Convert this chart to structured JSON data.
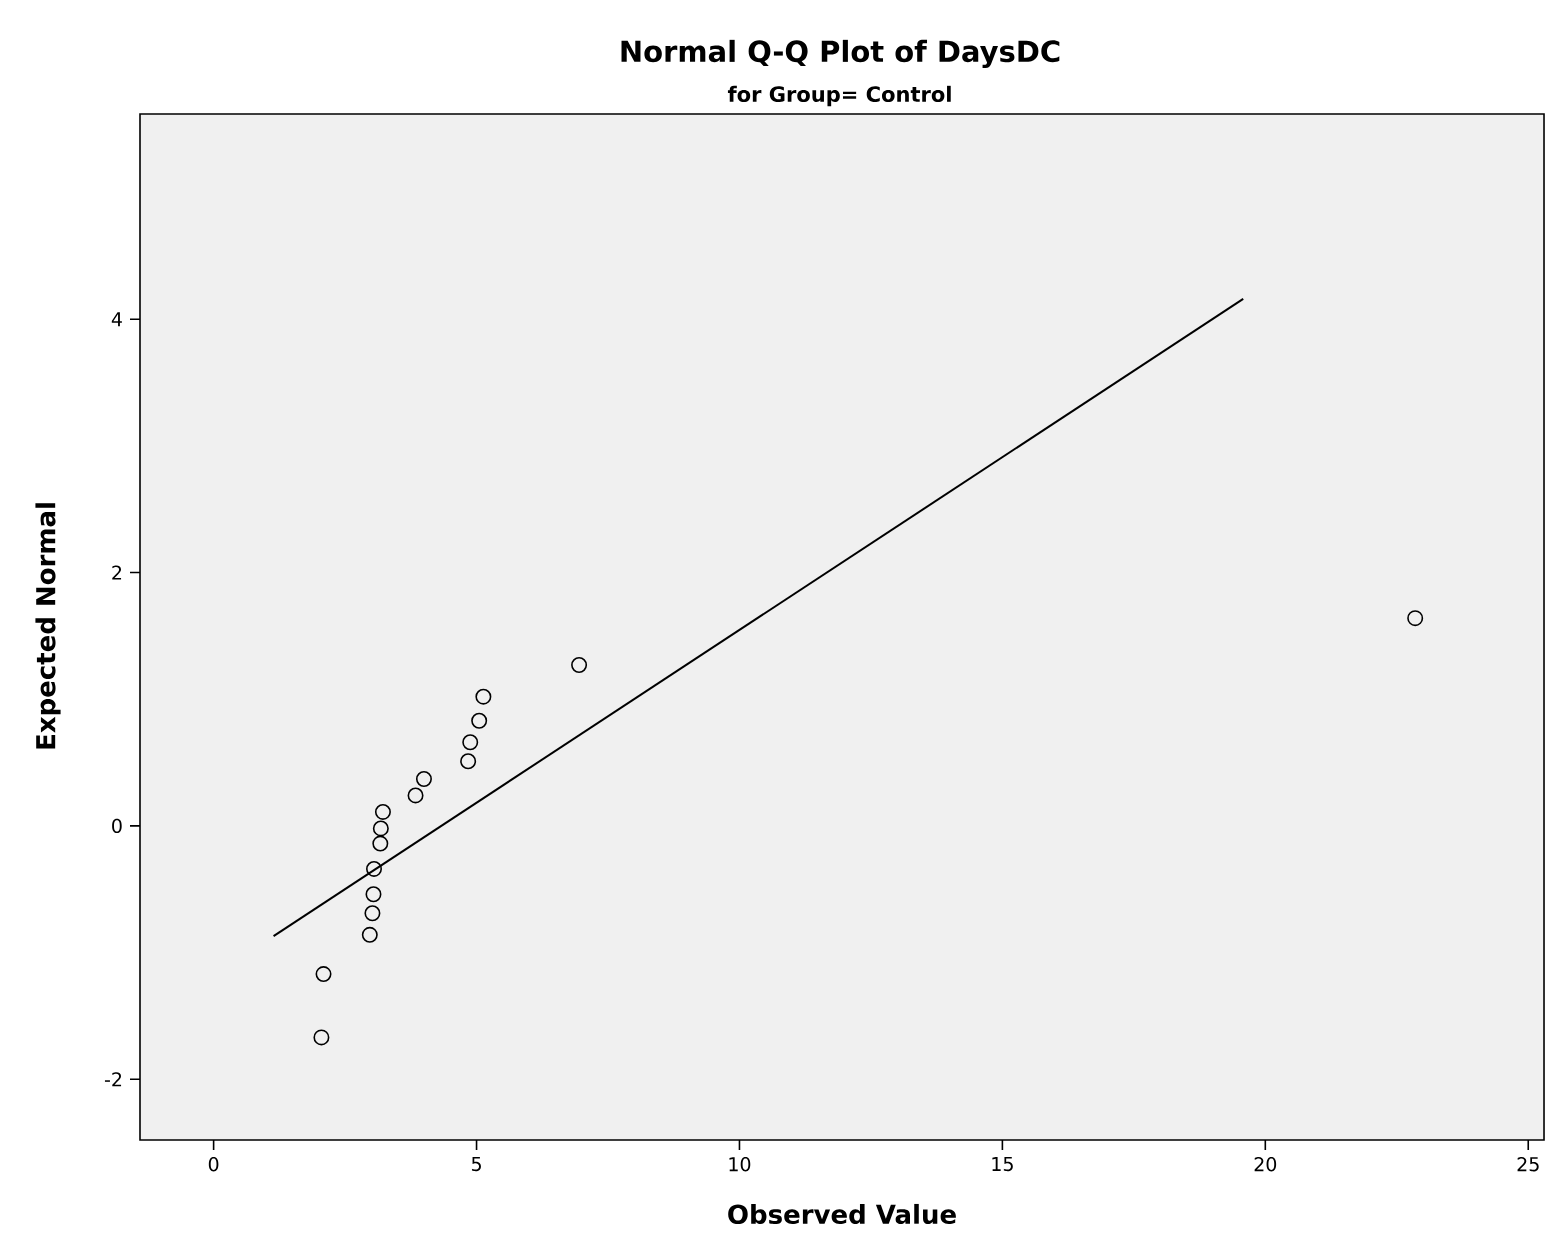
{
  "chart_data": {
    "type": "scatter",
    "title": "Normal Q-Q Plot of DaysDC",
    "subtitle": "for Group= Control",
    "xlabel": "Observed Value",
    "ylabel": "Expected Normal",
    "xlim": [
      -1.4,
      25.3
    ],
    "ylim": [
      -2.48,
      5.62
    ],
    "xticks": [
      0,
      5,
      10,
      15,
      20,
      25
    ],
    "yticks": [
      -2,
      0,
      2,
      4
    ],
    "grid": false,
    "series": [
      {
        "color": "#000000",
        "marker": "circle",
        "x": [
          2.05,
          2.09,
          2.97,
          3.02,
          3.04,
          3.05,
          3.17,
          3.18,
          3.22,
          3.84,
          4.0,
          4.84,
          4.88,
          5.05,
          5.13,
          6.95,
          22.85
        ],
        "values": [
          -1.67,
          -1.17,
          -0.86,
          -0.69,
          -0.54,
          -0.34,
          -0.14,
          -0.02,
          0.11,
          0.24,
          0.37,
          0.51,
          0.66,
          0.83,
          1.02,
          1.27,
          1.64
        ]
      },
      {
        "type": "line",
        "color": "#000000",
        "marker": "none",
        "line_style": "solid",
        "x": [
          1.14,
          19.58
        ],
        "values": [
          -0.87,
          4.16
        ]
      }
    ]
  }
}
